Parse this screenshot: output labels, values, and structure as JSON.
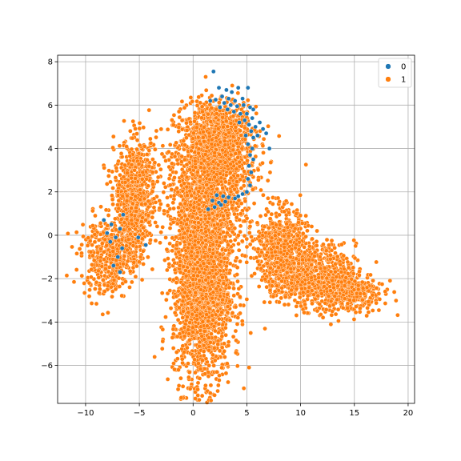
{
  "chart_data": {
    "type": "scatter",
    "title": "",
    "xlabel": "",
    "ylabel": "",
    "xlim": [
      -12.6,
      20.6
    ],
    "ylim": [
      -7.75,
      8.3
    ],
    "grid": true,
    "legend_position": "top-right",
    "x_ticks": [
      -10,
      -5,
      0,
      5,
      10,
      15,
      20
    ],
    "y_ticks": [
      -6,
      -4,
      -2,
      0,
      2,
      4,
      6,
      8
    ],
    "x_tick_labels": [
      "−10",
      "−5",
      "0",
      "5",
      "10",
      "15",
      "20"
    ],
    "y_tick_labels": [
      "−6",
      "−4",
      "−2",
      "0",
      "2",
      "4",
      "6",
      "8"
    ],
    "series": [
      {
        "name": "0",
        "color": "#1f77b4",
        "points": [
          [
            1.9,
            7.55
          ],
          [
            2.4,
            6.8
          ],
          [
            3.1,
            6.7
          ],
          [
            3.6,
            6.6
          ],
          [
            4.2,
            6.8
          ],
          [
            5.1,
            6.8
          ],
          [
            2.7,
            6.4
          ],
          [
            3.3,
            6.3
          ],
          [
            3.9,
            6.2
          ],
          [
            4.6,
            6.3
          ],
          [
            1.6,
            6.2
          ],
          [
            2.1,
            6.25
          ],
          [
            2.9,
            6.1
          ],
          [
            3.5,
            6.0
          ],
          [
            4.1,
            5.95
          ],
          [
            4.7,
            6.0
          ],
          [
            5.3,
            5.9
          ],
          [
            5.6,
            5.8
          ],
          [
            2.5,
            5.9
          ],
          [
            3.2,
            5.8
          ],
          [
            3.8,
            5.7
          ],
          [
            4.4,
            5.6
          ],
          [
            5.0,
            5.6
          ],
          [
            5.5,
            5.4
          ],
          [
            4.8,
            5.3
          ],
          [
            4.3,
            5.2
          ],
          [
            5.2,
            5.1
          ],
          [
            5.8,
            5.0
          ],
          [
            6.2,
            5.2
          ],
          [
            6.5,
            4.9
          ],
          [
            5.4,
            4.8
          ],
          [
            4.9,
            4.6
          ],
          [
            5.6,
            4.5
          ],
          [
            6.0,
            4.6
          ],
          [
            6.8,
            4.7
          ],
          [
            5.1,
            4.2
          ],
          [
            5.5,
            4.0
          ],
          [
            5.3,
            3.7
          ],
          [
            5.6,
            3.5
          ],
          [
            5.2,
            3.2
          ],
          [
            5.4,
            2.9
          ],
          [
            5.1,
            2.6
          ],
          [
            5.3,
            2.3
          ],
          [
            7.1,
            4.0
          ],
          [
            5.0,
            2.0
          ],
          [
            4.6,
            1.9
          ],
          [
            4.2,
            1.8
          ],
          [
            3.9,
            1.7
          ],
          [
            3.3,
            1.75
          ],
          [
            2.8,
            1.8
          ],
          [
            2.2,
            1.85
          ],
          [
            1.8,
            1.6
          ],
          [
            2.4,
            1.5
          ],
          [
            3.0,
            1.55
          ],
          [
            2.0,
            1.3
          ],
          [
            2.6,
            1.4
          ],
          [
            1.4,
            1.2
          ],
          [
            -6.5,
            0.95
          ],
          [
            -8.3,
            0.7
          ],
          [
            -7.6,
            0.5
          ],
          [
            -6.8,
            0.3
          ],
          [
            -8.0,
            0.1
          ],
          [
            -7.2,
            -0.1
          ],
          [
            -7.7,
            -0.3
          ],
          [
            -6.6,
            -0.6
          ],
          [
            -7.0,
            -1.0
          ],
          [
            -7.4,
            -1.4
          ],
          [
            -6.8,
            -1.7
          ],
          [
            -5.1,
            -0.1
          ],
          [
            -4.4,
            -0.45
          ]
        ]
      },
      {
        "name": "1",
        "color": "#ff7f0e",
        "clusters": [
          {
            "cx": 2.0,
            "cy": 3.7,
            "sx": 1.9,
            "sy": 1.1,
            "n": 1300
          },
          {
            "cx": 2.3,
            "cy": 5.0,
            "sx": 1.2,
            "sy": 0.55,
            "n": 300
          },
          {
            "cx": 0.9,
            "cy": -2.3,
            "sx": 1.35,
            "sy": 2.2,
            "n": 2100
          },
          {
            "cx": 1.2,
            "cy": 0.9,
            "sx": 1.8,
            "sy": 0.9,
            "n": 600
          },
          {
            "cx": -5.3,
            "cy": 2.3,
            "sx": 1.0,
            "sy": 1.05,
            "n": 550
          },
          {
            "cx": -5.7,
            "cy": 0.3,
            "sx": 0.8,
            "sy": 0.9,
            "n": 300
          },
          {
            "cx": -8.0,
            "cy": -1.0,
            "sx": 1.2,
            "sy": 0.9,
            "n": 380
          },
          {
            "cx": 8.2,
            "cy": -0.6,
            "sx": 1.2,
            "sy": 0.9,
            "n": 650
          },
          {
            "cx": 11.3,
            "cy": -1.9,
            "sx": 1.9,
            "sy": 0.7,
            "n": 750
          },
          {
            "cx": 14.5,
            "cy": -2.6,
            "sx": 1.6,
            "sy": 0.5,
            "n": 320
          }
        ]
      }
    ]
  },
  "legend": {
    "entries": [
      {
        "label": "0",
        "color": "#1f77b4"
      },
      {
        "label": "1",
        "color": "#ff7f0e"
      }
    ]
  },
  "style": {
    "background": "#ffffff",
    "grid_color": "#b0b0b0",
    "axis_color": "#000000",
    "marker_edge": "#ffffff"
  }
}
